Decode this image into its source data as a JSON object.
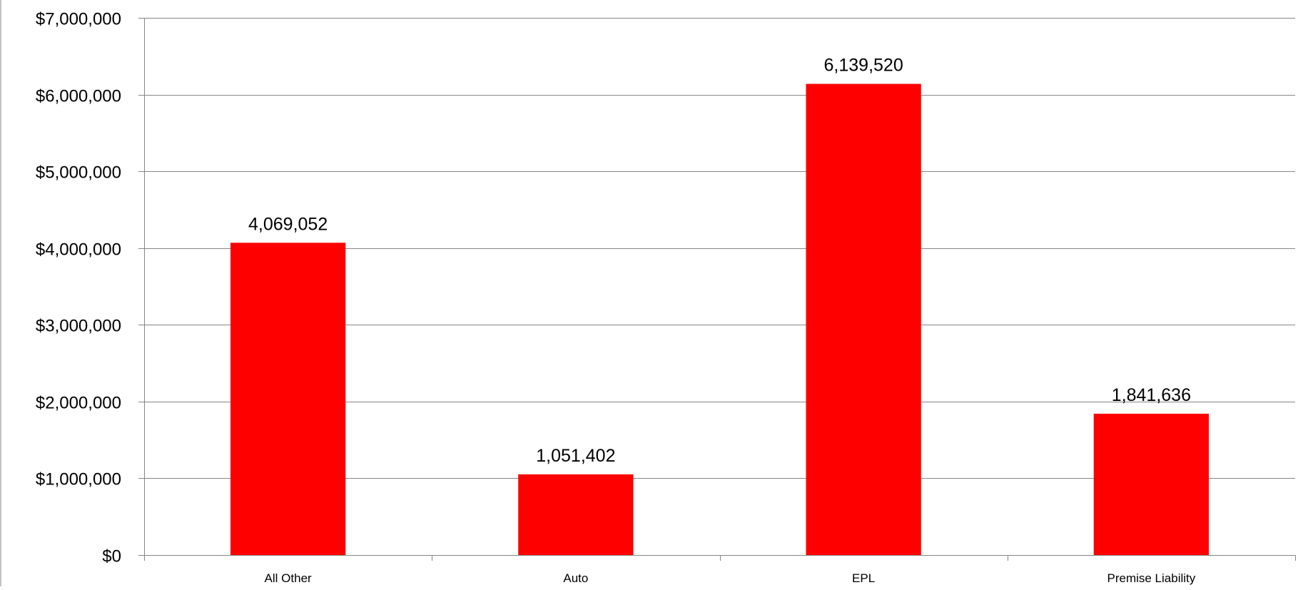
{
  "chart_data": {
    "type": "bar",
    "title": "",
    "xlabel": "",
    "ylabel": "",
    "categories": [
      "All Other",
      "Auto",
      "EPL",
      "Premise Liability"
    ],
    "values": [
      4069052,
      1051402,
      6139520,
      1841636
    ],
    "data_labels": [
      "4,069,052",
      "1,051,402",
      "6,139,520",
      "1,841,636"
    ],
    "ylim": [
      0,
      7000000
    ],
    "y_ticks": [
      0,
      1000000,
      2000000,
      3000000,
      4000000,
      5000000,
      6000000,
      7000000
    ],
    "y_tick_labels": [
      "$0",
      "$1,000,000",
      "$2,000,000",
      "$3,000,000",
      "$4,000,000",
      "$5,000,000",
      "$6,000,000",
      "$7,000,000"
    ],
    "grid": true,
    "legend": "none",
    "bar_color": "#ff0000",
    "grid_color": "#868686",
    "axis_color": "#868686"
  }
}
